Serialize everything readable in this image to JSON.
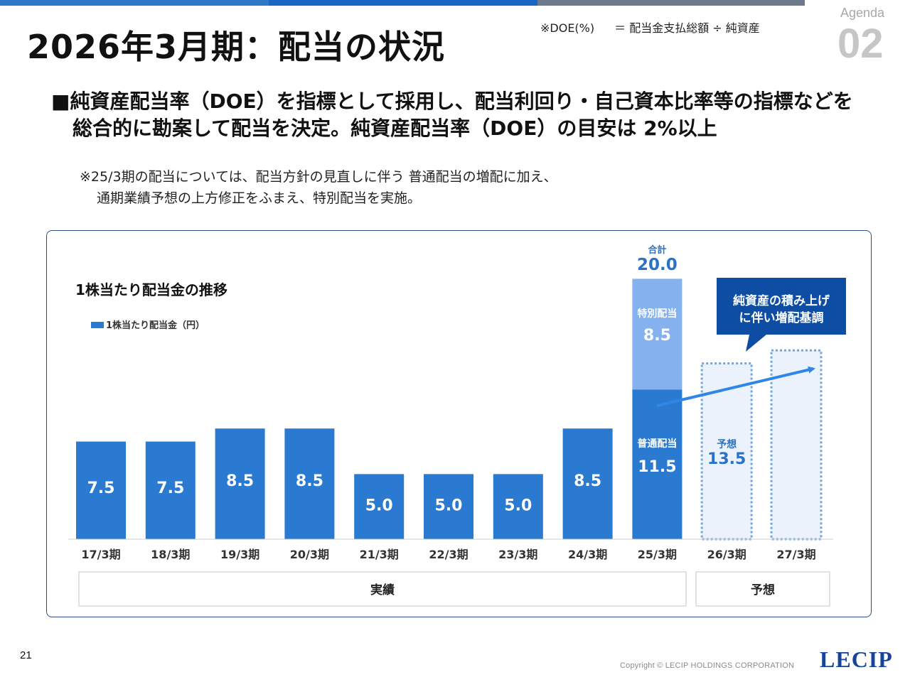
{
  "header": {
    "title": "2026年3月期：配当の状況",
    "doe_label": "※DOE(%)",
    "doe_formula": "＝ 配当金支払総額 ÷ 純資産",
    "agenda_label": "Agenda",
    "agenda_number": "02"
  },
  "policy": {
    "line1": "■純資産配当率（DOE）を指標として採用し、配当利回り・自己資本比率等の指標などを",
    "line2": "総合的に勘案して配当を決定。純資産配当率（DOE）の目安は 2%以上"
  },
  "note": {
    "line1": "※25/3期の配当については、配当方針の見直しに伴う 普通配当の増配に加え、",
    "line2": "通期業績予想の上方修正をふまえ、特別配当を実施。"
  },
  "footer": {
    "page_number": "21",
    "copyright": "Copyright © LECIP HOLDINGS CORPORATION",
    "logo": "LECIP"
  },
  "colors": {
    "bar": "#2b7ad1",
    "special_bar": "#86b1ef",
    "forecast_fill": "#ebf2fb",
    "forecast_border": "#77a7d8",
    "callout": "#0d4da3",
    "value_text": "#2a72c7",
    "arrow": "#2e86e8",
    "axis": "#cccccc"
  },
  "chart_data": {
    "type": "bar",
    "title": "1株当たり配当金の推移",
    "legend": "1株当たり配当金（円）",
    "categories": [
      "17/3期",
      "18/3期",
      "19/3期",
      "20/3期",
      "21/3期",
      "22/3期",
      "23/3期",
      "24/3期",
      "25/3期",
      "26/3期",
      "27/3期"
    ],
    "values": [
      7.5,
      7.5,
      8.5,
      8.5,
      5.0,
      5.0,
      5.0,
      8.5,
      11.5,
      13.5,
      null
    ],
    "value_labels": [
      "7.5",
      "7.5",
      "8.5",
      "8.5",
      "5.0",
      "5.0",
      "5.0",
      "8.5",
      "11.5",
      "13.5",
      ""
    ],
    "special_dividend": {
      "category": "25/3期",
      "ordinary_label": "普通配当",
      "ordinary": 11.5,
      "ordinary_text": "11.5",
      "special_label": "特別配当",
      "special": 8.5,
      "special_text": "8.5",
      "total_label": "合計",
      "total": 20.0,
      "total_text": "20.0"
    },
    "forecast": {
      "categories": [
        "26/3期",
        "27/3期"
      ],
      "label": "予想",
      "value_26": 13.5,
      "value_26_text": "13.5",
      "value_27_dashed_height": 14.5
    },
    "callout": {
      "line1": "純資産の積み上げ",
      "line2": "に伴い増配基調"
    },
    "periods": [
      {
        "label": "実績",
        "from": "17/3期",
        "to": "25/3期"
      },
      {
        "label": "予想",
        "from": "26/3期",
        "to": "27/3期"
      }
    ],
    "ylim": [
      0,
      20
    ],
    "grid": false
  }
}
